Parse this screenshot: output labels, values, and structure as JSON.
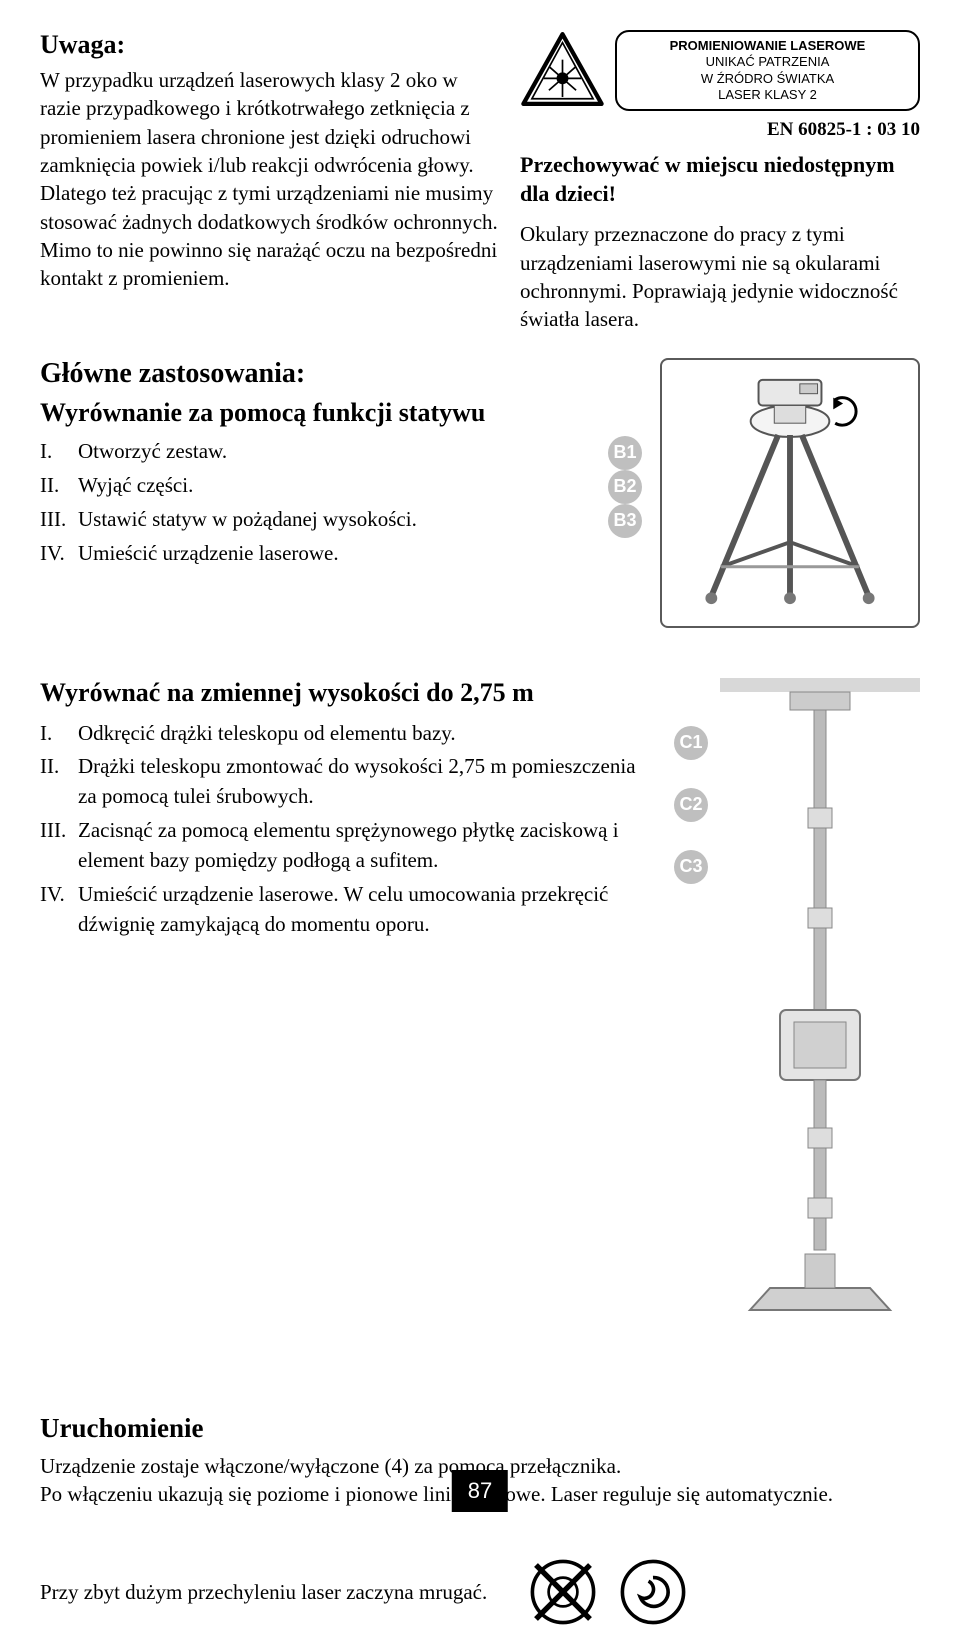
{
  "uwaga": {
    "title": "Uwaga:",
    "para": "W przypadku urządzeń laserowych klasy 2 oko w razie przypadkowego i krótkotrwałego zetknięcia z promieniem lasera chronione jest dzięki odruchowi zamknięcia powiek i/lub reakcji odwrócenia głowy. Dlatego też pracując z tymi urządzeniami nie musimy stosować żadnych dodatkowych środków ochronnych. Mimo to nie powinno się narażąć oczu na bezpośredni kontakt z promieniem."
  },
  "label": {
    "l1": "PROMIENIOWANIE LASEROWE",
    "l2": "UNIKAĆ PATRZENIA",
    "l3": "W ŹRÓDRO ŚWIATKA",
    "l4": "LASER KLASY 2"
  },
  "en_code": "EN 60825-1 : 03 10",
  "storage": "Przechowywać w miejscu niedostępnym dla dzieci!",
  "glasses": "Okulary przeznaczone do pracy z tymi urządzeniami laserowymi nie są okularami ochronnymi. Poprawiają jedynie widoczność światła lasera.",
  "apps": {
    "title": "Główne zastosowania:",
    "sub": "Wyrównanie za pomocą funkcji statywu",
    "items": [
      {
        "r": "I.",
        "t": "Otworzyć zestaw.",
        "b": "B1"
      },
      {
        "r": "II.",
        "t": "Wyjąć części.",
        "b": "B2"
      },
      {
        "r": "III.",
        "t": "Ustawić statyw w pożądanej wysokości.",
        "b": "B3"
      },
      {
        "r": "IV.",
        "t": "Umieścić urządzenie laserowe.",
        "b": null
      }
    ]
  },
  "var": {
    "title": "Wyrównać na zmiennej wysokości do 2,75 m",
    "items": [
      {
        "r": "I.",
        "t": "Odkręcić drążki teleskopu od elementu bazy."
      },
      {
        "r": "II.",
        "t": "Drążki teleskopu zmontować do wysokości 2,75 m pomieszczenia za pomocą tulei śrubowych."
      },
      {
        "r": "III.",
        "t": "Zacisnąć za pomocą elementu sprężynowego płytkę zaciskową i element bazy pomiędzy podłogą a sufitem."
      },
      {
        "r": "IV.",
        "t": "Umieścić urządzenie laserowe. W celu umocowania przekręcić dźwignię zamykającą do momentu oporu."
      }
    ],
    "badges": [
      "C1",
      "C2",
      "C3"
    ]
  },
  "start": {
    "title": "Uruchomienie",
    "p1": "Urządzenie zostaje włączone/wyłączone (4) za pomocą przełącznika.",
    "p2": "Po włączeniu ukazują się poziome i pionowe linie laserowe. Laser reguluje się automatycznie."
  },
  "tilt": "Przy zbyt dużym przechyleniu laser zaczyna mrugać.",
  "page": "87",
  "colors": {
    "badge_bg": "#bfbfbf",
    "badge_fg": "#ffffff",
    "border": "#5a5a5a"
  }
}
